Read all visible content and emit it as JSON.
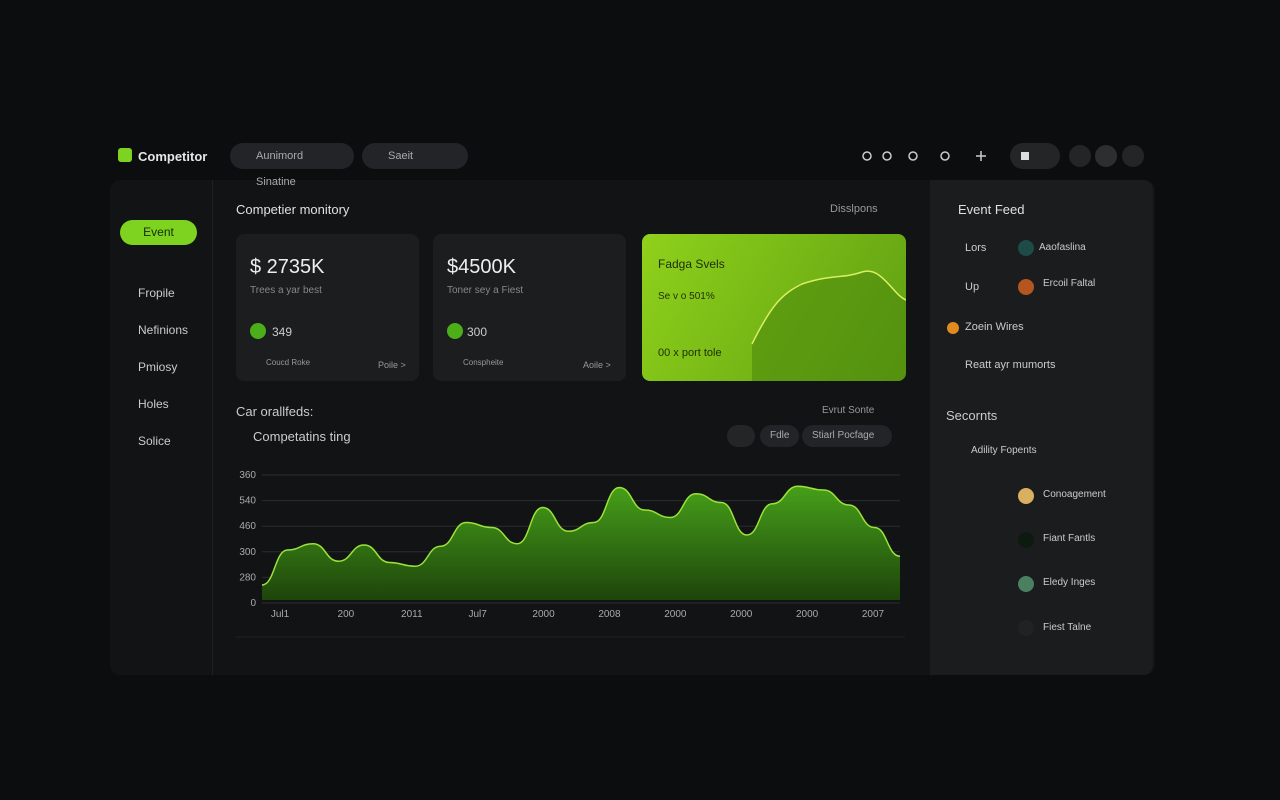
{
  "brand": "Competitor",
  "search": [
    "Aunimord Sinatine",
    "Saeit"
  ],
  "nav": {
    "button": "Event",
    "items": [
      "Fropile",
      "Nefinions",
      "Pmiosy",
      "Holes",
      "Solice"
    ]
  },
  "main": {
    "title": "Competier monitory",
    "filter": "Disslpons",
    "cards": [
      {
        "amount": "$ 2735K",
        "sub": "Trees a yar best",
        "count": "349",
        "user": "Coucd Roke",
        "link": "Poile >"
      },
      {
        "amount": "$4500K",
        "sub": "Toner sey a Fiest",
        "count": "300",
        "user": "Conspheite",
        "link": "Aoile >"
      }
    ],
    "highlight": {
      "title": "Fadga Svels",
      "line1": "Se v o 501%",
      "line2": "00 x port tole"
    },
    "section": "Car orallfeds:",
    "section_filter": "Evrut Sonte",
    "chart": {
      "type": "area",
      "title": "Competatins ting",
      "buttons": [
        "Fdle",
        "Stiarl Pocfage"
      ],
      "y_labels": [
        "360",
        "540",
        "460",
        "300",
        "280",
        "0"
      ],
      "x_labels": [
        "Jul1",
        "200",
        "2011",
        "Jul7",
        "2000",
        "2008",
        "2000",
        "2000",
        "2000",
        "2007"
      ],
      "values": [
        12,
        40,
        45,
        31,
        44,
        30,
        27,
        43,
        62,
        58,
        45,
        74,
        55,
        62,
        90,
        72,
        66,
        85,
        78,
        52,
        77,
        91,
        88,
        76,
        58,
        35
      ],
      "ylim": [
        0,
        100
      ],
      "color": "#4caf1a"
    }
  },
  "feed": {
    "title": "Event Feed",
    "rows": [
      {
        "label": "Lors",
        "tag": "Aaofaslina"
      },
      {
        "label": "Up",
        "tag": "Ercoil Faltal"
      },
      {
        "label": "Zoein Wires"
      },
      {
        "label": "Reatt ayr mumorts"
      }
    ],
    "section": "Secornts",
    "items": [
      "Adility Fopents",
      "Conoagement",
      "Fiant Fantls",
      "Eledy Inges",
      "Fiest Talne"
    ]
  }
}
